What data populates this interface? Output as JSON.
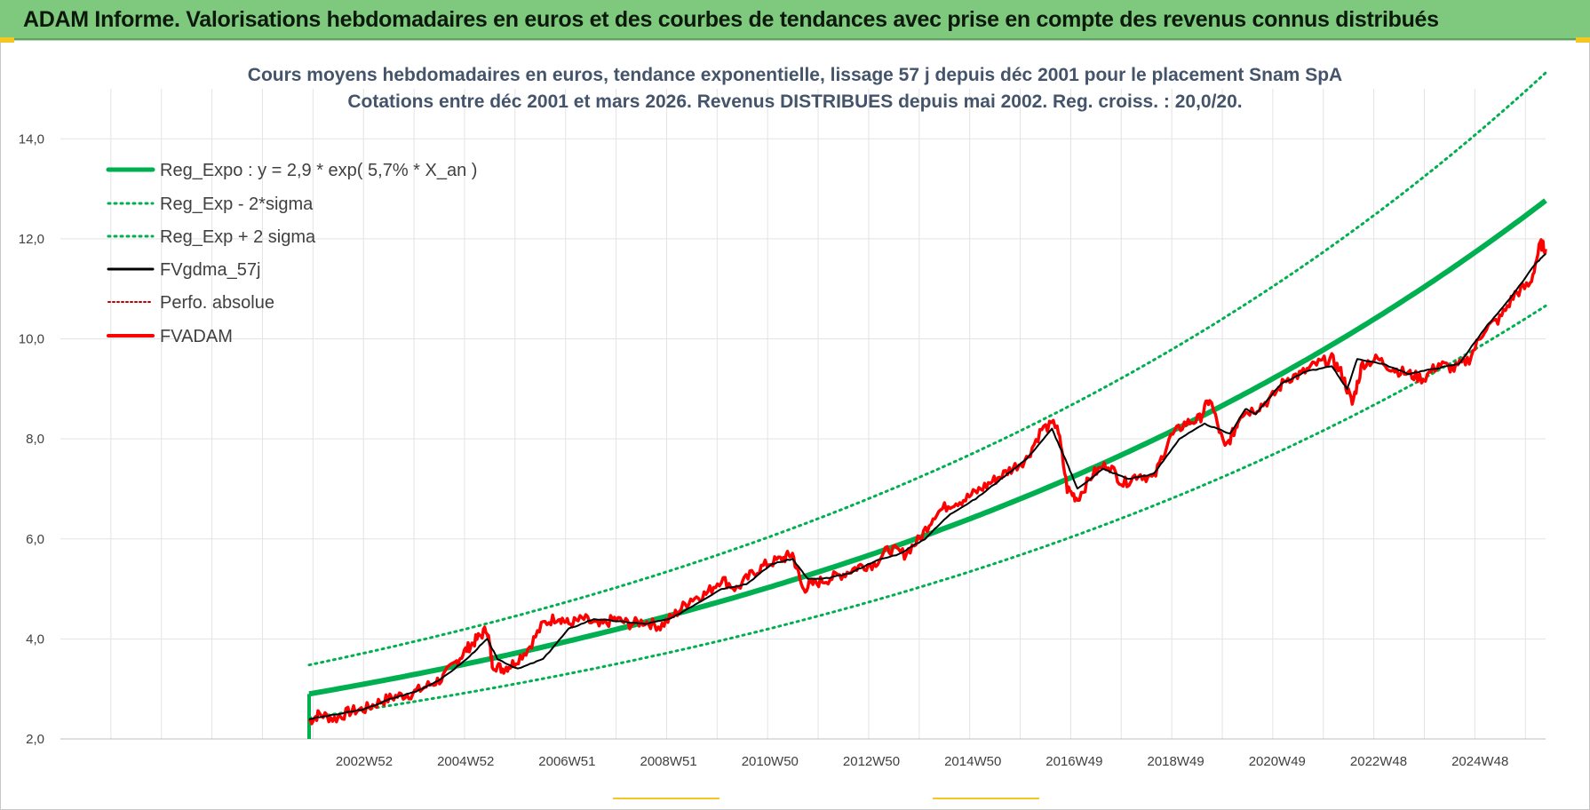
{
  "banner": {
    "title": "ADAM Informe. Valorisations hebdomadaires en euros et des courbes de tendances avec prise en compte des revenus connus distribués"
  },
  "colors": {
    "banner_bg": "#7fc97f",
    "trend": "#00b050",
    "smoothed": "#000000",
    "price": "#ff0000",
    "title_text": "#44546a",
    "grid": "#e3e3e3"
  },
  "chart_data": {
    "type": "line",
    "title": "Cours moyens hebdomadaires en euros, tendance exponentielle, lissage 57 j depuis déc 2001 pour le placement Snam SpA",
    "subtitle": "Cotations entre déc 2001 et mars 2026. Revenus DISTRIBUES depuis mai 2002. Reg. croiss. : 20,0/20.",
    "xlabel": "",
    "ylabel": "",
    "ylim": [
      2,
      15
    ],
    "y_ticks": [
      "2,0",
      "4,0",
      "6,0",
      "8,0",
      "10,0",
      "12,0",
      "14,0"
    ],
    "x_ticks": [
      "2002W52",
      "2004W52",
      "2006W51",
      "2008W51",
      "2010W50",
      "2012W50",
      "2014W50",
      "2016W49",
      "2018W49",
      "2020W49",
      "2022W48",
      "2024W48"
    ],
    "x_start": 2001.9,
    "x_end": 2026.2,
    "grid": true,
    "legend_position": "top-left",
    "series": [
      {
        "name": "Reg_Expo : y = 2,9 * exp( 5,7% *  X_an )",
        "color": "#00b050",
        "style": "solid-thick",
        "x": [
          2001.9,
          2026.2
        ],
        "formula": {
          "a": 2.9,
          "rate": 0.057
        }
      },
      {
        "name": "Reg_Exp - 2*sigma",
        "color": "#00b050",
        "style": "dotted",
        "x": [
          2001.9,
          2026.2
        ],
        "formula": {
          "factor": 0.835
        }
      },
      {
        "name": "Reg_Exp + 2 sigma",
        "color": "#00b050",
        "style": "dotted",
        "x": [
          2001.9,
          2026.2
        ],
        "formula": {
          "factor": 1.2
        }
      },
      {
        "name": "FVgdma_57j",
        "color": "#000000",
        "style": "solid",
        "x": [
          2001.9,
          2002.5,
          2003.0,
          2003.5,
          2004.0,
          2004.5,
          2005.0,
          2005.4,
          2005.6,
          2006.0,
          2006.5,
          2007.0,
          2007.5,
          2008.0,
          2008.5,
          2009.0,
          2009.5,
          2010.0,
          2010.5,
          2011.0,
          2011.4,
          2011.7,
          2012.0,
          2012.5,
          2013.0,
          2013.5,
          2014.0,
          2014.5,
          2015.0,
          2015.5,
          2016.0,
          2016.5,
          2016.8,
          2017.0,
          2017.5,
          2018.0,
          2018.5,
          2019.0,
          2019.5,
          2020.0,
          2020.3,
          2020.5,
          2021.0,
          2021.5,
          2022.0,
          2022.3,
          2022.5,
          2023.0,
          2023.5,
          2024.0,
          2024.5,
          2025.0,
          2025.5,
          2026.0,
          2026.2
        ],
        "values": [
          2.4,
          2.5,
          2.6,
          2.8,
          2.95,
          3.2,
          3.6,
          4.0,
          3.6,
          3.4,
          3.6,
          4.2,
          4.4,
          4.35,
          4.3,
          4.4,
          4.7,
          5.0,
          5.1,
          5.5,
          5.6,
          5.2,
          5.2,
          5.3,
          5.55,
          5.7,
          6.0,
          6.5,
          6.8,
          7.2,
          7.6,
          8.2,
          7.5,
          7.0,
          7.4,
          7.2,
          7.3,
          8.0,
          8.3,
          8.1,
          8.6,
          8.5,
          9.1,
          9.35,
          9.45,
          9.0,
          9.6,
          9.5,
          9.3,
          9.4,
          9.5,
          10.2,
          10.8,
          11.5,
          11.7
        ]
      },
      {
        "name": "Perfo. absolue",
        "color": "#c00000",
        "style": "dotted",
        "x": [],
        "values": []
      },
      {
        "name": "FVADAM",
        "color": "#ff0000",
        "style": "solid-thick",
        "x": [
          2001.9,
          2002.1,
          2002.4,
          2002.7,
          2003.0,
          2003.3,
          2003.6,
          2003.9,
          2004.2,
          2004.5,
          2004.8,
          2005.0,
          2005.2,
          2005.4,
          2005.5,
          2005.7,
          2005.9,
          2006.2,
          2006.5,
          2006.8,
          2007.0,
          2007.3,
          2007.6,
          2007.9,
          2008.2,
          2008.5,
          2008.8,
          2009.1,
          2009.4,
          2009.7,
          2010.0,
          2010.3,
          2010.6,
          2010.9,
          2011.2,
          2011.4,
          2011.6,
          2011.8,
          2012.1,
          2012.4,
          2012.7,
          2013.0,
          2013.3,
          2013.6,
          2013.9,
          2014.2,
          2014.5,
          2014.8,
          2015.1,
          2015.4,
          2015.7,
          2016.0,
          2016.3,
          2016.6,
          2016.8,
          2017.0,
          2017.3,
          2017.6,
          2017.9,
          2018.2,
          2018.5,
          2018.8,
          2019.1,
          2019.4,
          2019.6,
          2019.9,
          2020.1,
          2020.2,
          2020.5,
          2020.8,
          2021.1,
          2021.4,
          2021.7,
          2022.0,
          2022.2,
          2022.4,
          2022.6,
          2022.9,
          2023.2,
          2023.5,
          2023.8,
          2024.1,
          2024.4,
          2024.7,
          2025.0,
          2025.3,
          2025.6,
          2025.9,
          2026.1,
          2026.2
        ],
        "values": [
          2.35,
          2.5,
          2.4,
          2.55,
          2.6,
          2.75,
          2.85,
          2.9,
          3.05,
          3.2,
          3.55,
          3.8,
          4.0,
          4.2,
          3.5,
          3.4,
          3.5,
          3.8,
          4.3,
          4.45,
          4.3,
          4.4,
          4.25,
          4.4,
          4.3,
          4.35,
          4.25,
          4.5,
          4.8,
          4.9,
          5.2,
          5.0,
          5.3,
          5.5,
          5.6,
          5.7,
          5.0,
          5.1,
          5.2,
          5.3,
          5.45,
          5.5,
          5.8,
          5.7,
          6.0,
          6.5,
          6.7,
          6.8,
          7.0,
          7.2,
          7.4,
          7.6,
          8.2,
          8.3,
          7.0,
          6.8,
          7.3,
          7.5,
          7.1,
          7.3,
          7.2,
          8.0,
          8.3,
          8.4,
          8.8,
          7.8,
          8.2,
          8.5,
          8.6,
          8.8,
          9.2,
          9.3,
          9.5,
          9.6,
          9.3,
          8.7,
          9.5,
          9.6,
          9.4,
          9.3,
          9.2,
          9.5,
          9.4,
          9.6,
          10.2,
          10.4,
          10.9,
          11.1,
          11.9,
          11.8
        ]
      }
    ]
  }
}
